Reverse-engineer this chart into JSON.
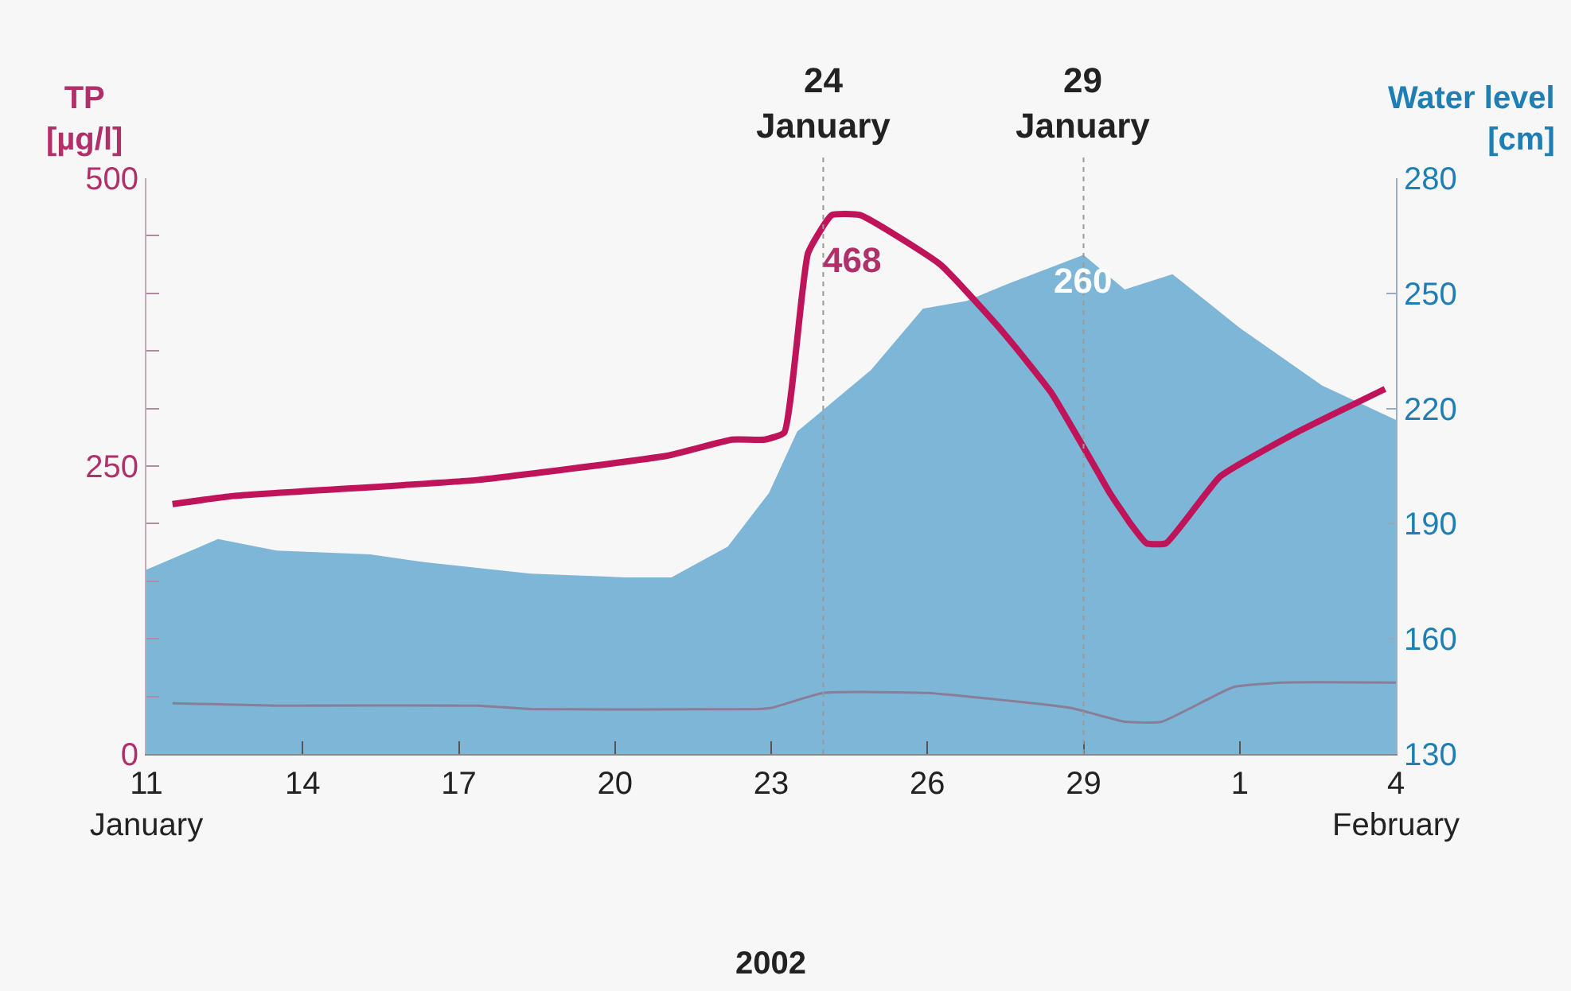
{
  "chart_data": {
    "type": "line",
    "xlabel": "2002",
    "ylabel": "TP\n[µg/l]",
    "y2label": "Water level\n[cm]",
    "xlim": [
      "2002-01-11",
      "2002-02-04"
    ],
    "xticks": [
      {
        "value": "2002-01-11",
        "label": "11\nJanuary"
      },
      {
        "value": "2002-01-14",
        "label": "14"
      },
      {
        "value": "2002-01-17",
        "label": "17"
      },
      {
        "value": "2002-01-20",
        "label": "20"
      },
      {
        "value": "2002-01-23",
        "label": "23"
      },
      {
        "value": "2002-01-26",
        "label": "26"
      },
      {
        "value": "2002-01-29",
        "label": "29"
      },
      {
        "value": "2002-02-01",
        "label": "1"
      },
      {
        "value": "2002-02-04",
        "label": "4\nFebruary"
      }
    ],
    "ylim": [
      0,
      500
    ],
    "yticks": [
      0,
      {
        "value": 50,
        "label": null
      },
      {
        "value": 100,
        "label": null
      },
      {
        "value": 150,
        "label": null
      },
      {
        "value": 200,
        "label": null
      },
      250,
      {
        "value": 300,
        "label": null
      },
      {
        "value": 350,
        "label": null
      },
      {
        "value": 400,
        "label": null
      },
      {
        "value": 450,
        "label": null
      },
      500
    ],
    "y2lim": [
      130,
      280
    ],
    "y2ticks": [
      130,
      160,
      190,
      220,
      250,
      280
    ],
    "series": [
      {
        "type": "area",
        "axis": "y2",
        "color": "#7db6d6",
        "x": [
          "2002-01-11T00:00",
          "2002-01-12T09:00",
          "2002-01-13T12:00",
          "2002-01-15T07:00",
          "2002-01-16T08:00",
          "2002-01-18T09:00",
          "2002-01-20T05:00",
          "2002-01-21T02:00",
          "2002-01-22T04:00",
          "2002-01-22T23:00",
          "2002-01-23T12:00",
          "2002-01-24T22:00",
          "2002-01-25T22:00",
          "2002-01-26T18:00",
          "2002-01-27T11:00",
          "2002-01-29T00:00",
          "2002-01-29T19:00",
          "2002-01-30T17:00",
          "2002-02-01T00:00",
          "2002-02-02T14:00",
          "2002-02-04T00:00"
        ],
        "values": [
          178,
          186,
          183,
          182,
          180,
          177,
          176,
          176,
          184,
          198,
          214,
          230,
          246,
          248,
          252,
          260,
          251,
          255,
          241,
          226,
          217
        ]
      },
      {
        "color": "#8a7d98",
        "x": [
          "2002-01-11T12:00",
          "2002-01-13T12:00",
          "2002-01-17T09:00",
          "2002-01-18T09:00",
          "2002-01-22T18:00",
          "2002-01-23T00:00",
          "2002-01-24T00:00",
          "2002-01-26T00:00",
          "2002-01-28T18:00",
          "2002-01-29T19:00",
          "2002-01-30T12:00",
          "2002-01-31T21:00",
          "2002-02-01T20:00",
          "2002-02-04T00:00"
        ],
        "values": [
          44,
          42,
          42,
          39,
          39,
          40,
          53,
          53,
          40,
          28,
          28,
          58,
          62,
          62
        ]
      },
      {
        "color": "#c0145a",
        "x": [
          "2002-01-11T12:00",
          "2002-01-12T16:00",
          "2002-01-17T09:00",
          "2002-01-21T00:00",
          "2002-01-22T06:00",
          "2002-01-22T21:00",
          "2002-01-23T06:00",
          "2002-01-23T17:00",
          "2002-01-24T04:00",
          "2002-01-24T17:00",
          "2002-01-26T06:00",
          "2002-01-27T11:00",
          "2002-01-28T09:00",
          "2002-01-29T05:00",
          "2002-01-29T12:00",
          "2002-01-29T22:00",
          "2002-01-30T05:00",
          "2002-01-30T14:00",
          "2002-01-31T15:00",
          "2002-02-02T01:00",
          "2002-02-03T19:00"
        ],
        "values": [
          217,
          224,
          238,
          259,
          273,
          273,
          279,
          435,
          468,
          468,
          425,
          366,
          314,
          250,
          227,
          199,
          183,
          183,
          241,
          278,
          317
        ]
      }
    ],
    "ref_lines": [
      {
        "axis": "x",
        "value": "2002-01-24",
        "label": "24\nJanuary",
        "line_style": "dotted",
        "color": "#999999"
      },
      {
        "axis": "x",
        "value": "2002-01-29",
        "label": "29\nJanuary",
        "line_style": "dotted",
        "color": "#999999"
      }
    ],
    "annotations": [
      {
        "text": "468",
        "x": "2002-01-24T06:00",
        "y": 468
      },
      "260"
    ]
  }
}
